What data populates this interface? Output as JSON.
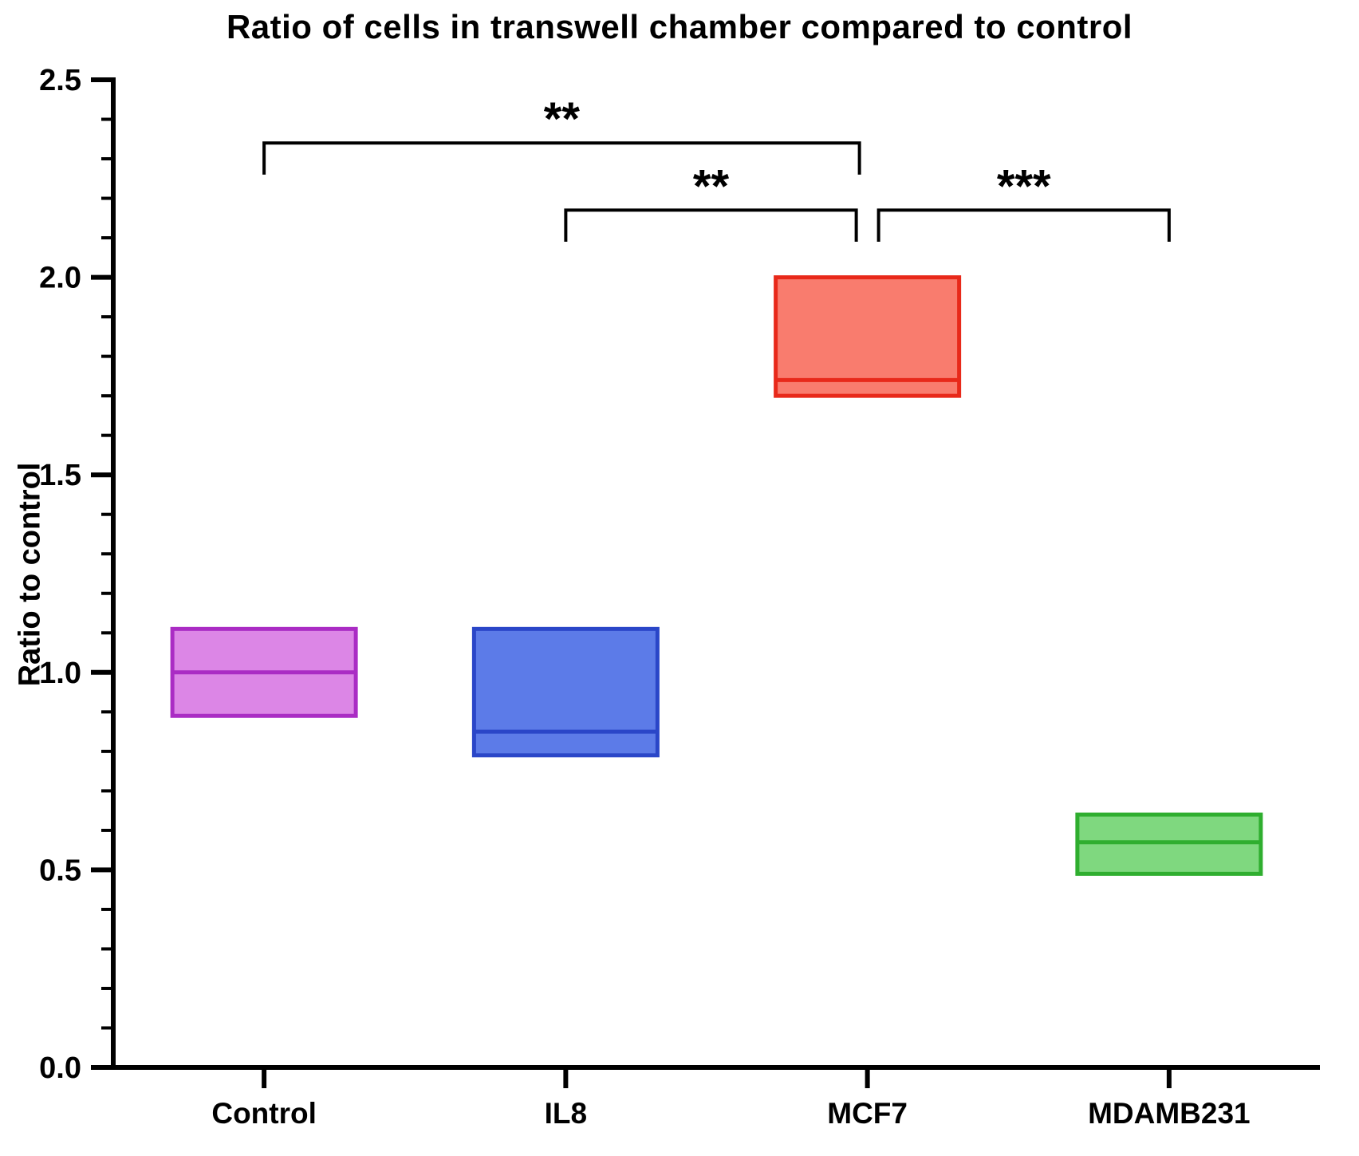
{
  "page": {
    "background": "#ffffff",
    "axis_color": "#000000",
    "text_color": "#000000"
  },
  "chart_data": {
    "type": "box",
    "title": "Ratio of cells in transwell chamber compared to control",
    "ylabel": "Ratio to control",
    "xlabel": "",
    "ylim": [
      0.0,
      2.5
    ],
    "y_major_ticks": [
      0.0,
      0.5,
      1.0,
      1.5,
      2.0,
      2.5
    ],
    "y_tick_labels": [
      "0.0",
      "0.5",
      "1.0",
      "1.5",
      "2.0",
      "2.5"
    ],
    "y_minor_tick_step": 0.1,
    "grid": false,
    "legend": false,
    "categories": [
      "Control",
      "IL8",
      "MCF7",
      "MDAMB231"
    ],
    "boxes": [
      {
        "category": "Control",
        "min": 0.89,
        "median": 1.0,
        "max": 1.11,
        "fill": "#DC86E6",
        "stroke": "#AA2CC4"
      },
      {
        "category": "IL8",
        "min": 0.79,
        "median": 0.85,
        "max": 1.11,
        "fill": "#5C7BE8",
        "stroke": "#2A46C8"
      },
      {
        "category": "MCF7",
        "min": 1.7,
        "median": 1.74,
        "max": 2.0,
        "fill": "#F97C6E",
        "stroke": "#E8291A"
      },
      {
        "category": "MDAMB231",
        "min": 0.49,
        "median": 0.57,
        "max": 0.64,
        "fill": "#7FD87F",
        "stroke": "#2FAE2F"
      }
    ],
    "significance_brackets": [
      {
        "label": "**",
        "from": "Control",
        "to": "MCF7",
        "bar_y": 2.34,
        "drop": 0.08,
        "from_dx": 0,
        "to_dx": -10
      },
      {
        "label": "**",
        "from": "IL8",
        "to": "MCF7",
        "bar_y": 2.17,
        "drop": 0.08,
        "from_dx": 0,
        "to_dx": -14
      },
      {
        "label": "***",
        "from": "MCF7",
        "to": "MDAMB231",
        "bar_y": 2.17,
        "drop": 0.08,
        "from_dx": 14,
        "to_dx": 0
      }
    ]
  }
}
